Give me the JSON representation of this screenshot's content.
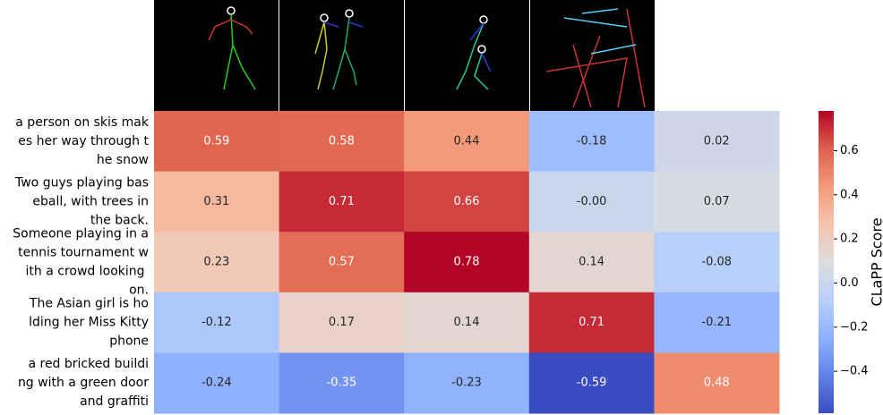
{
  "chart_data": {
    "type": "heatmap",
    "colormap": "coolwarm",
    "colorbar_label": "CLaPP Score",
    "row_labels": [
      [
        "a person on skis mak",
        "es her way through t",
        "he snow"
      ],
      [
        "Two guys playing bas",
        "eball, with trees in",
        "the back."
      ],
      [
        "Someone playing in a",
        "tennis tournament w",
        "ith a crowd looking ",
        "on."
      ],
      [
        "The Asian girl is ho",
        "lding her Miss Kitty",
        "phone"
      ],
      [
        "a red bricked buildi",
        "ng with a green door",
        "and graffiti"
      ]
    ],
    "values": [
      [
        0.59,
        0.58,
        0.44,
        -0.18,
        0.02
      ],
      [
        0.31,
        0.71,
        0.66,
        0,
        0.07
      ],
      [
        0.23,
        0.57,
        0.78,
        0.14,
        -0.08
      ],
      [
        -0.12,
        0.17,
        0.14,
        0.71,
        -0.21
      ],
      [
        -0.24,
        -0.35,
        -0.23,
        -0.59,
        0.48
      ]
    ],
    "value_labels": [
      [
        "0.59",
        "0.58",
        "0.44",
        "-0.18",
        "0.02"
      ],
      [
        "0.31",
        "0.71",
        "0.66",
        "-0.00",
        "0.07"
      ],
      [
        "0.23",
        "0.57",
        "0.78",
        "0.14",
        "-0.08"
      ],
      [
        "-0.12",
        "0.17",
        "0.14",
        "0.71",
        "-0.21"
      ],
      [
        "-0.24",
        "-0.35",
        "-0.23",
        "-0.59",
        "0.48"
      ]
    ],
    "clim": [
      -0.59,
      0.78
    ],
    "cticks": [
      0.6,
      0.4,
      0.2,
      {
        "value": 0,
        "label": "0.0"
      },
      {
        "value": -0.2,
        "label": "−0.2"
      },
      {
        "value": -0.4,
        "label": "−0.4"
      }
    ]
  }
}
